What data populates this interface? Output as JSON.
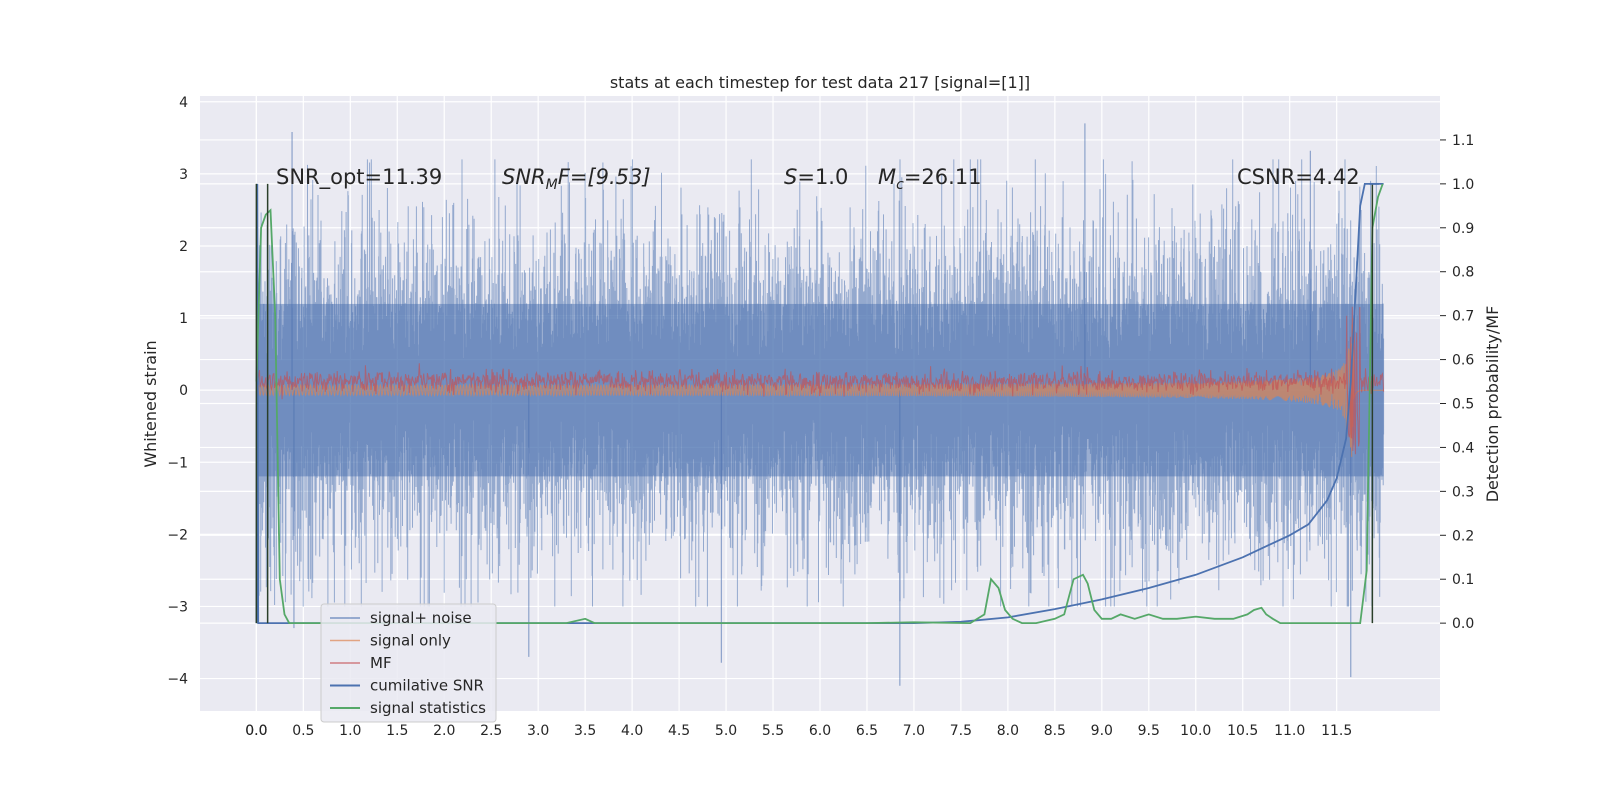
{
  "chart_data": {
    "type": "line",
    "title": "stats at each timestep for test data 217 [signal=[1]]",
    "xlabel": "",
    "ylabel": "Whitened strain",
    "ylabel_right": "Detection probability/MF",
    "xlim": [
      -0.6,
      12.6
    ],
    "ylim": [
      -4.45,
      4.08
    ],
    "ylim_right": [
      -0.2,
      1.2
    ],
    "x_ticks": [
      "0.0",
      "0.0",
      "0.5",
      "1.0",
      "1.5",
      "2.0",
      "2.5",
      "3.0",
      "3.5",
      "4.0",
      "4.5",
      "5.0",
      "5.5",
      "6.0",
      "6.5",
      "7.0",
      "7.5",
      "8.0",
      "8.5",
      "9.0",
      "9.5",
      "10.0",
      "10.5",
      "11.0",
      "11.5"
    ],
    "x_tick_values": [
      -0.0,
      0.0,
      0.5,
      1.0,
      1.5,
      2.0,
      2.5,
      3.0,
      3.5,
      4.0,
      4.5,
      5.0,
      5.5,
      6.0,
      6.5,
      7.0,
      7.5,
      8.0,
      8.5,
      9.0,
      9.5,
      10.0,
      10.5,
      11.0,
      11.5
    ],
    "y_ticks": [
      "4",
      "3",
      "2",
      "1",
      "0",
      "−1",
      "−2",
      "−3",
      "−4"
    ],
    "y_tick_values": [
      4,
      3,
      2,
      1,
      0,
      -1,
      -2,
      -3,
      -4
    ],
    "y_right_ticks": [
      "1.1",
      "1.0",
      "0.9",
      "0.8",
      "0.7",
      "0.6",
      "0.5",
      "0.4",
      "0.3",
      "0.2",
      "0.1",
      "0.0"
    ],
    "y_right_tick_values": [
      1.1,
      1.0,
      0.9,
      0.8,
      0.7,
      0.6,
      0.5,
      0.4,
      0.3,
      0.2,
      0.1,
      0.0
    ],
    "grid": true,
    "legend_position": "lower-left",
    "annotations": {
      "snr_opt": "SNR_opt=11.39",
      "snr_mf_sym": "SNR",
      "snr_mf_sub": "M",
      "snr_mf_rest": "F=[9.53]",
      "s_sym": "S",
      "s_rest": "=1.0",
      "mc_sym": "M",
      "mc_sub": "c",
      "mc_rest": "=26.11",
      "csnr": "CSNR=4.42"
    },
    "x_range_data": [
      0.0,
      12.0
    ],
    "series": [
      {
        "name": "signal+ noise",
        "color": "#4c72b0",
        "kind": "noise",
        "envelope_start": 2.3,
        "envelope_end": 2.3,
        "extreme_points": [
          [
            0.38,
            3.58
          ],
          [
            8.82,
            3.7
          ],
          [
            11.22,
            3.32
          ],
          [
            6.85,
            -4.1
          ],
          [
            11.65,
            -3.98
          ],
          [
            2.9,
            -3.7
          ],
          [
            4.95,
            -3.78
          ],
          [
            0.4,
            -3.3
          ]
        ]
      },
      {
        "name": "signal only",
        "color": "#dd8452",
        "kind": "chirp",
        "amp_start": 0.05,
        "amp_end": 1.05,
        "merger": 11.68
      },
      {
        "name": "MF",
        "color": "#c44e52",
        "kind": "mf",
        "baseline": 0.12,
        "noise_amp": 0.12
      },
      {
        "name": "cumilative SNR",
        "color": "#4c72b0",
        "kind": "right-axis",
        "x": [
          0.0,
          0.01,
          0.02,
          7.0,
          7.5,
          8.0,
          8.5,
          9.0,
          9.5,
          10.0,
          10.5,
          11.0,
          11.2,
          11.4,
          11.5,
          11.6,
          11.65,
          11.7,
          11.75,
          11.8,
          11.85,
          11.9,
          11.92,
          12.0
        ],
        "y": [
          0.0,
          1.0,
          0.0,
          0.0,
          0.003,
          0.013,
          0.032,
          0.054,
          0.08,
          0.11,
          0.15,
          0.2,
          0.225,
          0.28,
          0.33,
          0.42,
          0.55,
          0.75,
          0.95,
          1.0,
          1.0,
          1.0,
          1.0,
          1.0
        ]
      },
      {
        "name": "signal statistics",
        "color": "#55a868",
        "kind": "right-axis",
        "x": [
          0.0,
          0.05,
          0.1,
          0.15,
          0.2,
          0.25,
          0.3,
          0.35,
          0.45,
          3.3,
          3.5,
          3.6,
          3.75,
          6.5,
          7.0,
          7.6,
          7.75,
          7.82,
          7.9,
          7.97,
          8.05,
          8.15,
          8.3,
          8.5,
          8.6,
          8.7,
          8.8,
          8.85,
          8.92,
          9.0,
          9.1,
          9.2,
          9.35,
          9.5,
          9.65,
          9.8,
          10.0,
          10.2,
          10.4,
          10.55,
          10.62,
          10.7,
          10.75,
          10.82,
          10.9,
          11.2,
          11.5,
          11.75,
          11.82,
          11.88,
          11.94,
          11.99
        ],
        "y": [
          0.55,
          0.9,
          0.93,
          0.94,
          0.7,
          0.1,
          0.02,
          0.0,
          0.0,
          0.0,
          0.01,
          0.0,
          0.0,
          0.0,
          0.002,
          0.0,
          0.02,
          0.1,
          0.08,
          0.03,
          0.01,
          0.0,
          0.0,
          0.01,
          0.02,
          0.1,
          0.11,
          0.09,
          0.03,
          0.01,
          0.01,
          0.02,
          0.01,
          0.02,
          0.01,
          0.01,
          0.015,
          0.01,
          0.01,
          0.02,
          0.03,
          0.035,
          0.02,
          0.01,
          0.0,
          0.0,
          0.0,
          0.0,
          0.12,
          0.9,
          0.97,
          1.0
        ]
      }
    ]
  }
}
